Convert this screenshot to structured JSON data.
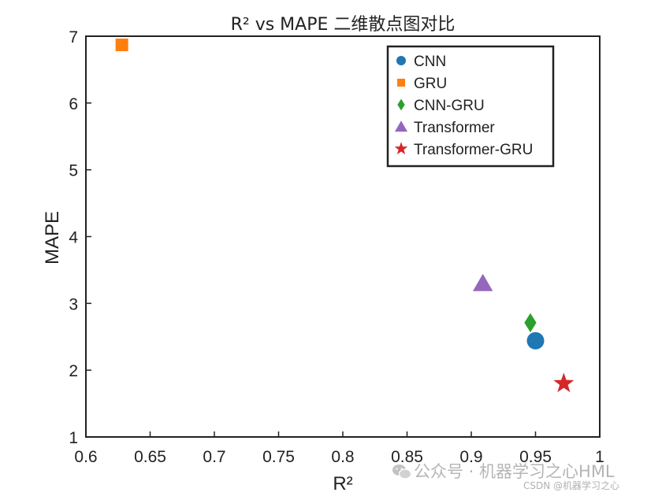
{
  "chart_data": {
    "type": "scatter",
    "title": "R² vs MAPE 二维散点图对比",
    "xlabel": "R²",
    "ylabel": "MAPE",
    "xlim": [
      0.6,
      1
    ],
    "ylim": [
      1,
      7
    ],
    "xticks": [
      "0.6",
      "0.65",
      "0.7",
      "0.75",
      "0.8",
      "0.85",
      "0.9",
      "0.95",
      "1"
    ],
    "yticks": [
      "1",
      "2",
      "3",
      "4",
      "5",
      "6",
      "7"
    ],
    "grid": false,
    "legend_position": "top-right",
    "series": [
      {
        "name": "CNN",
        "marker": "circle",
        "color": "#1f77b4",
        "x": 0.95,
        "y": 2.44
      },
      {
        "name": "GRU",
        "marker": "square",
        "color": "#ff7f0e",
        "x": 0.628,
        "y": 6.87
      },
      {
        "name": "CNN-GRU",
        "marker": "diamond",
        "color": "#2ca02c",
        "x": 0.946,
        "y": 2.71
      },
      {
        "name": "Transformer",
        "marker": "triangle",
        "color": "#9467bd",
        "x": 0.909,
        "y": 3.3
      },
      {
        "name": "Transformer-GRU",
        "marker": "star",
        "color": "#d62728",
        "x": 0.972,
        "y": 1.8
      }
    ]
  },
  "watermark": {
    "text": "公众号 · 机器学习之心HML",
    "icon": "wechat-icon",
    "csdn": "CSDN @机器学习之心"
  }
}
